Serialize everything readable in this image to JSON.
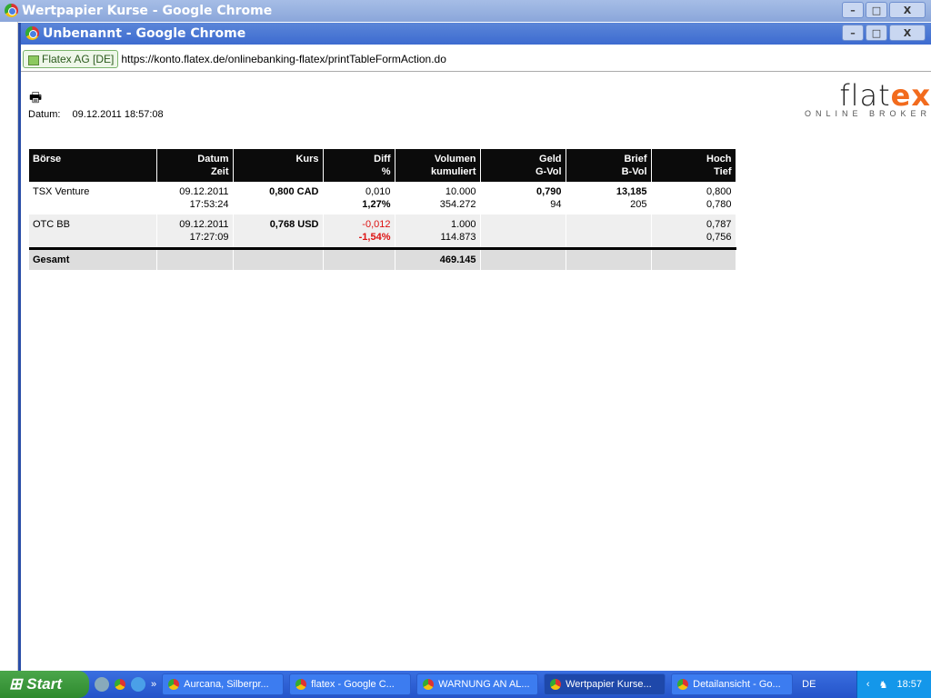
{
  "outer_window": {
    "title": "Wertpapier Kurse - Google Chrome"
  },
  "inner_window": {
    "title": "Unbenannt - Google Chrome",
    "ev_label": "Flatex AG [DE]",
    "url": "https://konto.flatex.de/onlinebanking-flatex/printTableFormAction.do"
  },
  "window_buttons": {
    "minimize": "–",
    "maximize": "□",
    "close": "X"
  },
  "page": {
    "datum_label": "Datum:",
    "datum_value": "09.12.2011 18:57:08",
    "logo_main": "flat",
    "logo_accent": "ex",
    "logo_sub": "ONLINE BROKER"
  },
  "table": {
    "headers": [
      [
        "Börse",
        ""
      ],
      [
        "Datum",
        "Zeit"
      ],
      [
        "Kurs",
        ""
      ],
      [
        "Diff",
        "%"
      ],
      [
        "Volumen",
        "kumuliert"
      ],
      [
        "Geld",
        "G-Vol"
      ],
      [
        "Brief",
        "B-Vol"
      ],
      [
        "Hoch",
        "Tief"
      ]
    ],
    "rows": [
      {
        "boerse": "TSX Venture",
        "datum": "09.12.2011",
        "zeit": "17:53:24",
        "kurs": "0,800 CAD",
        "diff": "0,010",
        "diff_pct": "1,27%",
        "volumen": "10.000",
        "kumuliert": "354.272",
        "geld": "0,790",
        "g_vol": "94",
        "brief": "13,185",
        "b_vol": "205",
        "hoch": "0,800",
        "tief": "0,780"
      },
      {
        "boerse": "OTC BB",
        "datum": "09.12.2011",
        "zeit": "17:27:09",
        "kurs": "0,768 USD",
        "diff": "-0,012",
        "diff_pct": "-1,54%",
        "volumen": "1.000",
        "kumuliert": "114.873",
        "geld": "",
        "g_vol": "",
        "brief": "",
        "b_vol": "",
        "hoch": "0,787",
        "tief": "0,756"
      }
    ],
    "total": {
      "label": "Gesamt",
      "volumen": "469.145"
    },
    "negative_color": "#dd1111"
  },
  "taskbar": {
    "start": "Start",
    "tasks": [
      "Aurcana, Silberpr...",
      "flatex - Google C...",
      "WARNUNG AN AL...",
      "Wertpapier Kurse...",
      "Detailansicht - Go..."
    ],
    "active_task": 3,
    "language": "DE",
    "clock": "18:57",
    "chevron": "»"
  }
}
